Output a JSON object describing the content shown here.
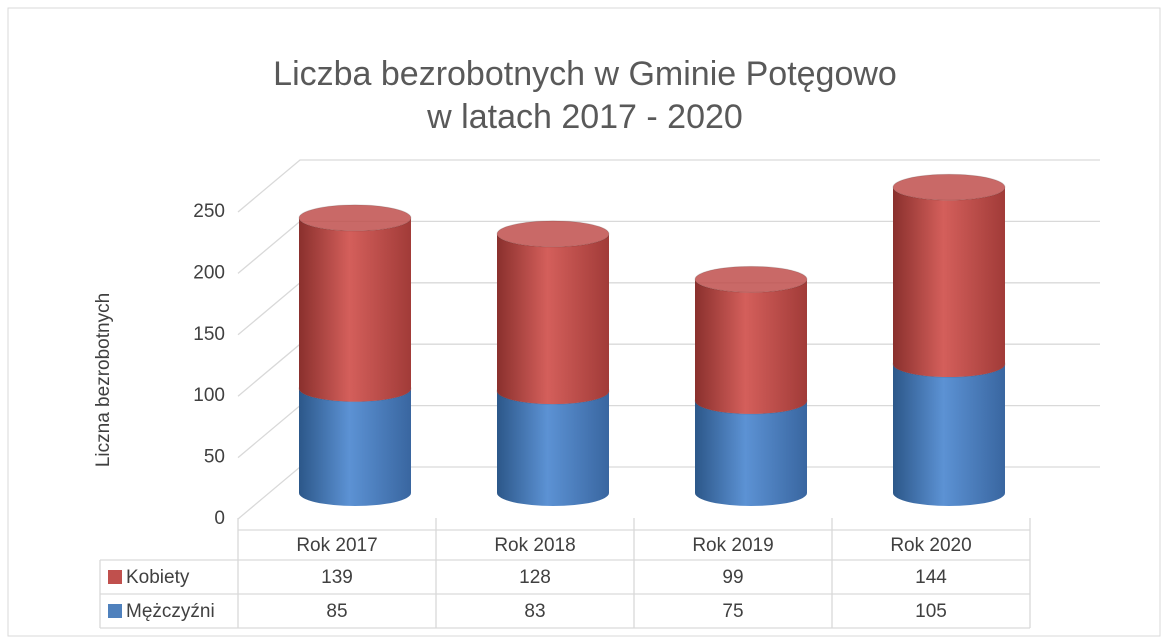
{
  "chart_data": {
    "type": "bar3d_stacked_cylinder",
    "title": "Liczba bezrobotnych w Gminie Potęgowo",
    "subtitle": "w latach 2017 - 2020",
    "y_label": "Liczna bezrobotnych",
    "categories": [
      "Rok 2017",
      "Rok 2018",
      "Rok 2019",
      "Rok 2020"
    ],
    "series": [
      {
        "name": "Kobiety",
        "color": "#c0504d",
        "values": [
          139,
          128,
          99,
          144
        ]
      },
      {
        "name": "Mężczyźni",
        "color": "#4f81bd",
        "values": [
          85,
          83,
          75,
          105
        ]
      }
    ],
    "ylim": [
      0,
      250
    ],
    "yticks": [
      0,
      50,
      100,
      150,
      200,
      250
    ],
    "grid": true
  }
}
